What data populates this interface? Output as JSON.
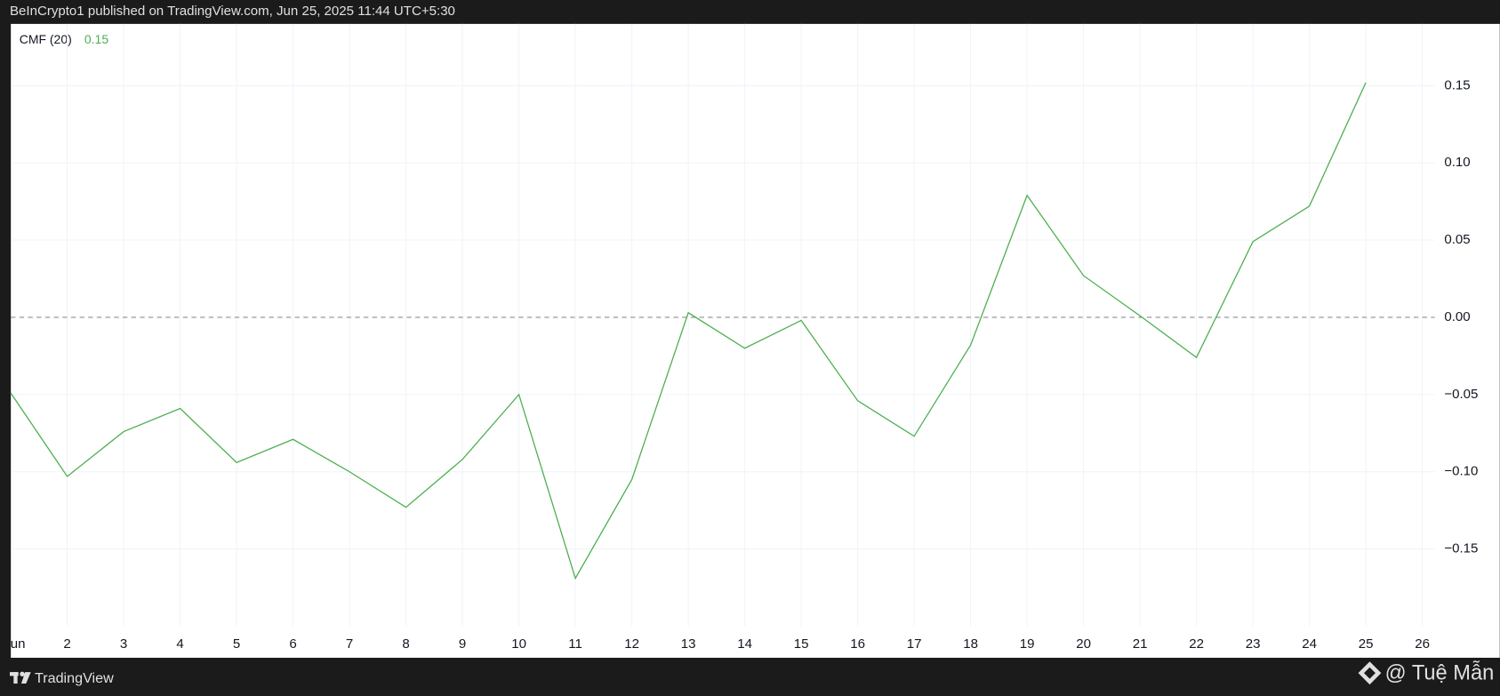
{
  "header": "BeInCrypto1 published on TradingView.com, Jun 25, 2025 11:44 UTC+5:30",
  "footer": {
    "brand": "TradingView",
    "author": "@ Tuệ Mẫn"
  },
  "chart_data": {
    "type": "line",
    "legend_name": "CMF (20)",
    "last_value_label": "0.15",
    "categories": [
      "Jun",
      "2",
      "3",
      "4",
      "5",
      "6",
      "7",
      "8",
      "9",
      "10",
      "11",
      "12",
      "13",
      "14",
      "15",
      "16",
      "17",
      "18",
      "19",
      "20",
      "21",
      "22",
      "23",
      "24",
      "25",
      "26"
    ],
    "series": [
      {
        "name": "CMF (20)",
        "color": "#4caf50",
        "values": [
          -0.049,
          -0.103,
          -0.074,
          -0.059,
          -0.094,
          -0.079,
          -0.1,
          -0.123,
          -0.092,
          -0.05,
          -0.169,
          -0.105,
          0.003,
          -0.02,
          -0.002,
          -0.054,
          -0.077,
          -0.018,
          0.079,
          0.027,
          0.001,
          -0.026,
          0.049,
          0.072,
          0.152,
          null
        ]
      }
    ],
    "ylim": [
      -0.2,
      0.19
    ],
    "yticks": [
      {
        "value": -0.15,
        "label": "−0.15"
      },
      {
        "value": -0.1,
        "label": "−0.10"
      },
      {
        "value": -0.05,
        "label": "−0.05"
      },
      {
        "value": 0,
        "label": "0.00"
      },
      0.05,
      {
        "value": 0.1,
        "label": "0.10"
      },
      0.15
    ],
    "grid": true
  }
}
